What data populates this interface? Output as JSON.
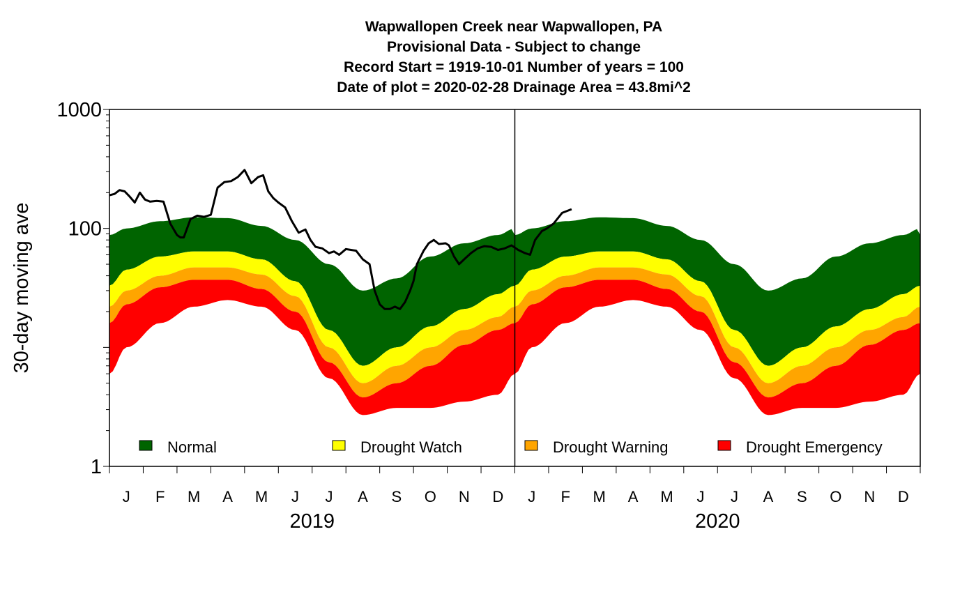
{
  "chart_data": {
    "type": "area",
    "title_lines": [
      "Wapwallopen Creek near Wapwallopen, PA",
      "Provisional Data - Subject to change",
      "Record Start = 1919-10-01  Number of years = 100",
      "Date of plot = 2020-02-28  Drainage Area = 43.8mi^2"
    ],
    "ylabel": "30-day moving ave",
    "yscale": "log",
    "ylim": [
      1,
      1000
    ],
    "yticks": [
      "1",
      "100",
      "1000"
    ],
    "months": [
      "J",
      "F",
      "M",
      "A",
      "M",
      "J",
      "J",
      "A",
      "S",
      "O",
      "N",
      "D",
      "J",
      "F",
      "M",
      "A",
      "M",
      "J",
      "J",
      "A",
      "S",
      "O",
      "N",
      "D"
    ],
    "years": [
      "2019",
      "2020"
    ],
    "year_boundary_month": 12,
    "colors": {
      "normal": "#006400",
      "drought_watch": "#ffff00",
      "drought_warning": "#ffa500",
      "drought_emergency": "#ff0000",
      "flow_line": "#000000"
    },
    "legend": [
      {
        "key": "normal",
        "label": "Normal"
      },
      {
        "key": "drought_watch",
        "label": "Drought Watch"
      },
      {
        "key": "drought_warning",
        "label": "Drought Warning"
      },
      {
        "key": "drought_emergency",
        "label": "Drought Emergency"
      }
    ],
    "legend_position": "bottom, inside plot",
    "bands": {
      "month_positions": [
        0,
        0.5,
        1.5,
        2.5,
        3.5,
        4.5,
        5.5,
        6.5,
        7.5,
        8.5,
        9.5,
        10.5,
        11.5,
        12
      ],
      "normal_top": [
        88,
        100,
        115,
        124,
        122,
        105,
        80,
        50,
        30,
        38,
        58,
        75,
        88,
        100
      ],
      "watch_top": [
        33,
        45,
        58,
        64,
        64,
        55,
        36,
        14,
        7,
        10,
        15,
        21,
        28,
        33
      ],
      "warning_top": [
        22,
        30,
        40,
        47,
        47,
        41,
        27,
        10,
        5,
        7,
        10,
        14,
        18,
        22
      ],
      "emergency_top": [
        16,
        23,
        32,
        37,
        37,
        31,
        20,
        7.5,
        3.8,
        5,
        7,
        10.5,
        14,
        16
      ],
      "emergency_bottom": [
        6,
        10,
        16,
        22,
        25,
        22,
        14,
        5.5,
        2.7,
        3.1,
        3.1,
        3.5,
        4,
        6
      ]
    },
    "flow_series": {
      "name": "30-day moving average flow",
      "x_months": [
        0,
        0.15,
        0.3,
        0.45,
        0.6,
        0.75,
        0.9,
        1.05,
        1.2,
        1.4,
        1.6,
        1.8,
        2.0,
        2.1,
        2.2,
        2.4,
        2.6,
        2.8,
        3.0,
        3.2,
        3.4,
        3.6,
        3.8,
        4.0,
        4.2,
        4.4,
        4.55,
        4.7,
        4.85,
        5.0,
        5.2,
        5.4,
        5.6,
        5.8,
        5.95,
        6.1,
        6.3,
        6.5,
        6.65,
        6.8,
        7.0,
        7.15,
        7.3,
        7.5,
        7.7,
        7.85,
        8.0,
        8.15,
        8.3,
        8.45,
        8.6,
        8.75,
        8.9,
        9.0,
        9.1,
        9.3,
        9.45,
        9.6,
        9.75,
        9.95,
        10.05,
        10.2,
        10.35,
        10.5,
        10.7,
        10.9,
        11.1,
        11.3,
        11.5,
        11.7,
        11.9,
        12.1,
        12.3,
        12.45,
        12.6,
        12.8,
        12.95,
        13.15,
        13.4,
        13.68
      ],
      "y_values": [
        190,
        195,
        210,
        205,
        185,
        165,
        200,
        175,
        168,
        170,
        168,
        110,
        88,
        84,
        84,
        120,
        128,
        125,
        130,
        220,
        245,
        250,
        270,
        310,
        240,
        270,
        280,
        205,
        180,
        165,
        150,
        115,
        92,
        98,
        80,
        70,
        68,
        62,
        64,
        60,
        67,
        66,
        65,
        55,
        50,
        30,
        23,
        21,
        21,
        22,
        21,
        24,
        30,
        36,
        50,
        65,
        75,
        80,
        74,
        75,
        72,
        58,
        50,
        55,
        62,
        68,
        71,
        70,
        66,
        68,
        72,
        66,
        62,
        60,
        80,
        95,
        100,
        110,
        135,
        145
      ]
    }
  }
}
